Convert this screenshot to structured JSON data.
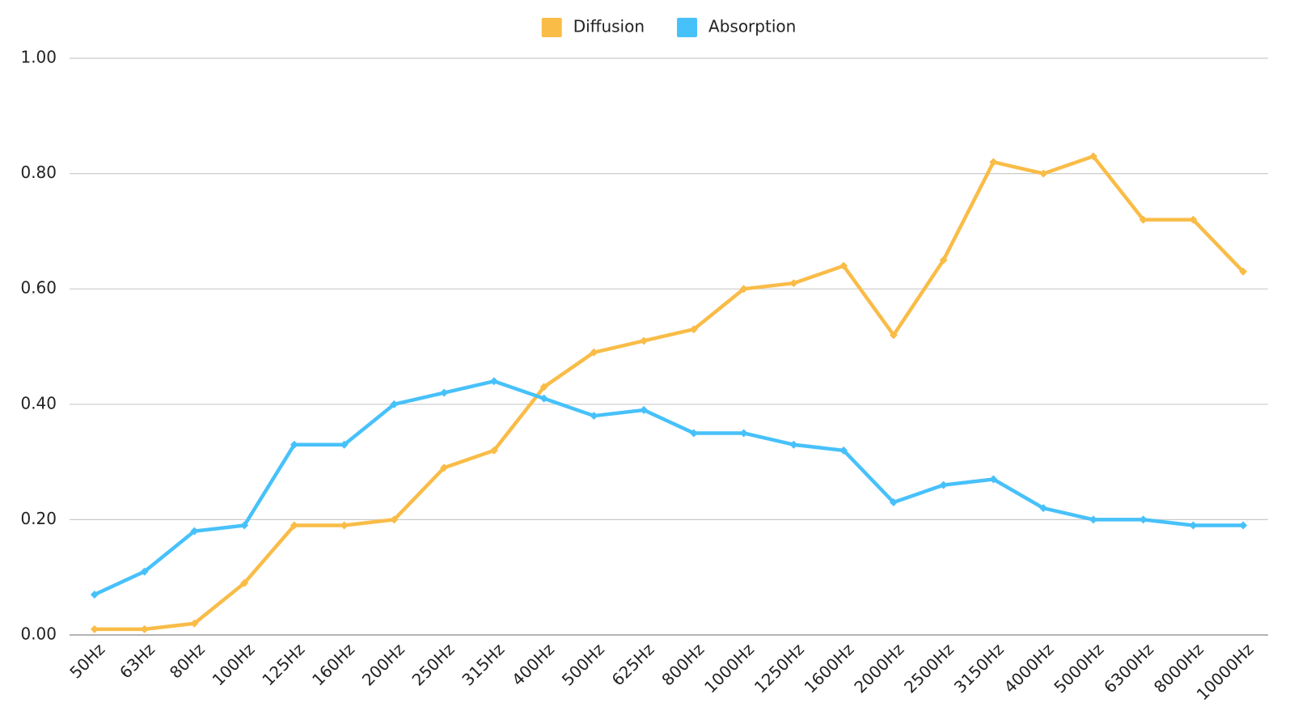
{
  "chart_data": {
    "type": "line",
    "categories": [
      "50Hz",
      "63Hz",
      "80Hz",
      "100Hz",
      "125Hz",
      "160Hz",
      "200Hz",
      "250Hz",
      "315Hz",
      "400Hz",
      "500Hz",
      "625Hz",
      "800Hz",
      "1000Hz",
      "1250Hz",
      "1600Hz",
      "2000Hz",
      "2500Hz",
      "3150Hz",
      "4000Hz",
      "5000Hz",
      "6300Hz",
      "8000Hz",
      "10000Hz"
    ],
    "series": [
      {
        "name": "Diffusion",
        "color": "#f9bc47",
        "values": [
          0.01,
          0.01,
          0.02,
          0.09,
          0.19,
          0.19,
          0.2,
          0.29,
          0.32,
          0.43,
          0.49,
          0.51,
          0.53,
          0.6,
          0.61,
          0.64,
          0.52,
          0.65,
          0.82,
          0.8,
          0.83,
          0.72,
          0.72,
          0.63
        ]
      },
      {
        "name": "Absorption",
        "color": "#47c1fa",
        "values": [
          0.07,
          0.11,
          0.18,
          0.19,
          0.33,
          0.33,
          0.4,
          0.42,
          0.44,
          0.41,
          0.38,
          0.39,
          0.35,
          0.35,
          0.33,
          0.32,
          0.23,
          0.26,
          0.27,
          0.22,
          0.2,
          0.2,
          0.19,
          0.19
        ]
      }
    ],
    "ylim": [
      0,
      1
    ],
    "yticks": [
      {
        "value": 0,
        "label": "0.00"
      },
      {
        "value": 0.2,
        "label": "0.20"
      },
      {
        "value": 0.4,
        "label": "0.40"
      },
      {
        "value": 0.6,
        "label": "0.60"
      },
      {
        "value": 0.8,
        "label": "0.80"
      },
      {
        "value": 1,
        "label": "1.00"
      }
    ],
    "grid": true,
    "legend": "top"
  }
}
